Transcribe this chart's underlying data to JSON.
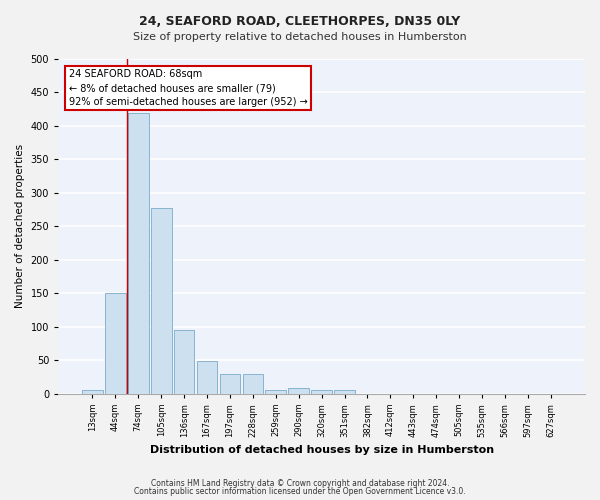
{
  "title1": "24, SEAFORD ROAD, CLEETHORPES, DN35 0LY",
  "title2": "Size of property relative to detached houses in Humberston",
  "xlabel": "Distribution of detached houses by size in Humberston",
  "ylabel": "Number of detached properties",
  "categories": [
    "13sqm",
    "44sqm",
    "74sqm",
    "105sqm",
    "136sqm",
    "167sqm",
    "197sqm",
    "228sqm",
    "259sqm",
    "290sqm",
    "320sqm",
    "351sqm",
    "382sqm",
    "412sqm",
    "443sqm",
    "474sqm",
    "505sqm",
    "535sqm",
    "566sqm",
    "597sqm",
    "627sqm"
  ],
  "bar_values": [
    5,
    150,
    420,
    277,
    95,
    49,
    29,
    29,
    5,
    9,
    5,
    5,
    0,
    0,
    0,
    0,
    0,
    0,
    0,
    0,
    0
  ],
  "bar_color": "#cce0f0",
  "bar_edge_color": "#7aaac8",
  "fig_background": "#f2f2f2",
  "ax_background": "#eef2fb",
  "grid_color": "#ffffff",
  "vline_x": 1.5,
  "vline_color": "#cc0000",
  "annotation_text": "24 SEAFORD ROAD: 68sqm\n← 8% of detached houses are smaller (79)\n92% of semi-detached houses are larger (952) →",
  "annotation_box_facecolor": "#ffffff",
  "annotation_box_edgecolor": "#cc0000",
  "footer1": "Contains HM Land Registry data © Crown copyright and database right 2024.",
  "footer2": "Contains public sector information licensed under the Open Government Licence v3.0.",
  "ylim": [
    0,
    500
  ],
  "yticks": [
    0,
    50,
    100,
    150,
    200,
    250,
    300,
    350,
    400,
    450,
    500
  ]
}
